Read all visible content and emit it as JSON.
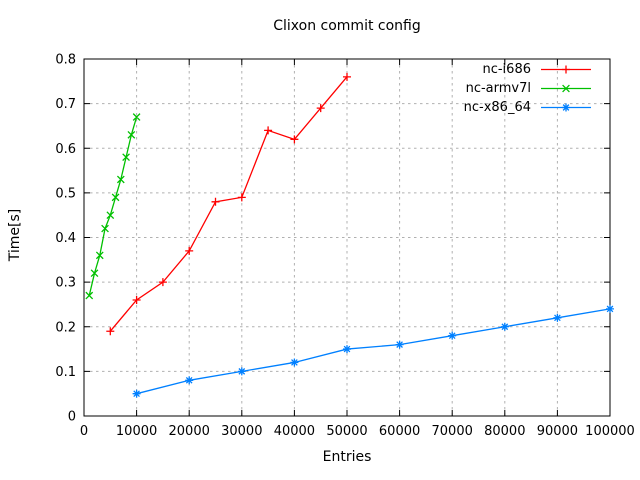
{
  "chart_data": {
    "type": "line",
    "title": "Clixon commit config",
    "xlabel": "Entries",
    "ylabel": "Time[s]",
    "xlim": [
      0,
      100000
    ],
    "ylim": [
      0,
      0.8
    ],
    "xticks": [
      0,
      10000,
      20000,
      30000,
      40000,
      50000,
      60000,
      70000,
      80000,
      90000,
      100000
    ],
    "xtick_labels": [
      "0",
      "10000",
      "20000",
      "30000",
      "40000",
      "50000",
      "60000",
      "70000",
      "80000",
      "90000",
      "100000"
    ],
    "yticks": [
      0,
      0.1,
      0.2,
      0.3,
      0.4,
      0.5,
      0.6,
      0.7,
      0.8
    ],
    "ytick_labels": [
      "0",
      "0.1",
      "0.2",
      "0.3",
      "0.4",
      "0.5",
      "0.6",
      "0.7",
      "0.8"
    ],
    "grid": true,
    "legend_position": "top-right-inside",
    "colors": {
      "axis": "#000000",
      "grid": "#b0b0b0",
      "background": "#ffffff"
    },
    "series": [
      {
        "name": "nc-i686",
        "color": "#ff0000",
        "marker": "plus",
        "x": [
          5000,
          10000,
          15000,
          20000,
          25000,
          30000,
          35000,
          40000,
          45000,
          50000
        ],
        "y": [
          0.19,
          0.26,
          0.3,
          0.37,
          0.48,
          0.49,
          0.64,
          0.62,
          0.69,
          0.76
        ]
      },
      {
        "name": "nc-armv7l",
        "color": "#00c000",
        "marker": "cross",
        "x": [
          1000,
          2000,
          3000,
          4000,
          5000,
          6000,
          7000,
          8000,
          9000,
          10000
        ],
        "y": [
          0.27,
          0.32,
          0.36,
          0.42,
          0.45,
          0.49,
          0.53,
          0.58,
          0.63,
          0.67
        ]
      },
      {
        "name": "nc-x86_64",
        "color": "#0080ff",
        "marker": "asterisk",
        "x": [
          10000,
          20000,
          30000,
          40000,
          50000,
          60000,
          70000,
          80000,
          90000,
          100000
        ],
        "y": [
          0.05,
          0.08,
          0.1,
          0.12,
          0.15,
          0.16,
          0.18,
          0.2,
          0.22,
          0.24
        ]
      }
    ]
  }
}
